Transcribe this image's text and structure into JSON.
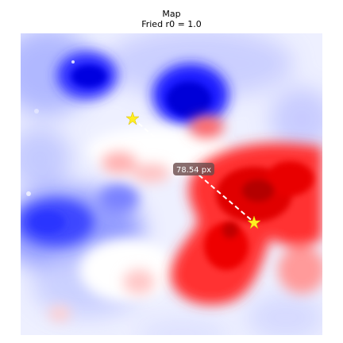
{
  "figure": {
    "title": "Map",
    "subtitle": "Fried r0 = 1.0"
  },
  "measurement": {
    "label": "78.54 px",
    "start_marker": "star",
    "end_marker": "star",
    "marker_color": "#ffee22",
    "line_color": "#ffffff"
  },
  "colormap": {
    "name": "bwr",
    "low": "#0000ff",
    "mid": "#ffffff",
    "high": "#ff0000"
  }
}
